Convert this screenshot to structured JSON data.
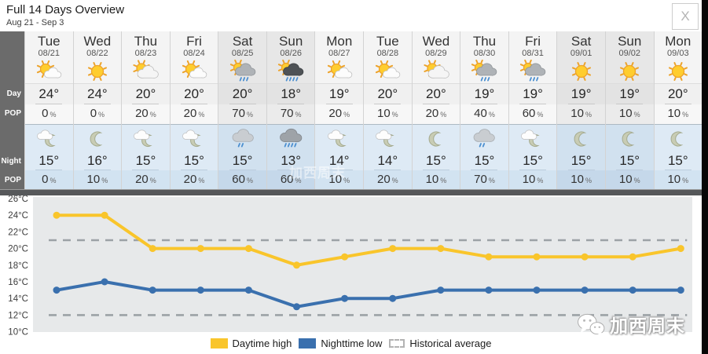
{
  "header": {
    "title": "Full 14 Days Overview",
    "subtitle": "Aug 21 - Sep 3",
    "close_label": "X"
  },
  "row_labels": {
    "day": "Day",
    "day_pop": "POP",
    "night": "Night",
    "night_pop": "POP"
  },
  "units": {
    "degree": "°",
    "percent": "%"
  },
  "days": [
    {
      "name": "Tue",
      "date": "08/21",
      "weekend": false,
      "day": {
        "icon": "sun-cloud",
        "temp": 24,
        "pop": 0
      },
      "night": {
        "icon": "cloud-moon",
        "temp": 15,
        "pop": 0
      }
    },
    {
      "name": "Wed",
      "date": "08/22",
      "weekend": false,
      "day": {
        "icon": "sun",
        "temp": 24,
        "pop": 0
      },
      "night": {
        "icon": "moon",
        "temp": 16,
        "pop": 10
      }
    },
    {
      "name": "Thu",
      "date": "08/23",
      "weekend": false,
      "day": {
        "icon": "cloud-sun",
        "temp": 20,
        "pop": 20
      },
      "night": {
        "icon": "cloud-moon",
        "temp": 15,
        "pop": 20
      }
    },
    {
      "name": "Fri",
      "date": "08/24",
      "weekend": false,
      "day": {
        "icon": "sun-cloud",
        "temp": 20,
        "pop": 20
      },
      "night": {
        "icon": "cloud-moon",
        "temp": 15,
        "pop": 20
      }
    },
    {
      "name": "Sat",
      "date": "08/25",
      "weekend": true,
      "day": {
        "icon": "sun-rain",
        "temp": 20,
        "pop": 70
      },
      "night": {
        "icon": "rain",
        "temp": 15,
        "pop": 60
      }
    },
    {
      "name": "Sun",
      "date": "08/26",
      "weekend": true,
      "day": {
        "icon": "sun-heavy-rain",
        "temp": 18,
        "pop": 70
      },
      "night": {
        "icon": "heavy-rain",
        "temp": 13,
        "pop": 60
      }
    },
    {
      "name": "Mon",
      "date": "08/27",
      "weekend": false,
      "day": {
        "icon": "sun-cloud",
        "temp": 19,
        "pop": 20
      },
      "night": {
        "icon": "cloud-moon",
        "temp": 14,
        "pop": 10
      }
    },
    {
      "name": "Tue",
      "date": "08/28",
      "weekend": false,
      "day": {
        "icon": "sun-cloud",
        "temp": 20,
        "pop": 10
      },
      "night": {
        "icon": "cloud-moon",
        "temp": 14,
        "pop": 20
      }
    },
    {
      "name": "Wed",
      "date": "08/29",
      "weekend": false,
      "day": {
        "icon": "cloud-sun",
        "temp": 20,
        "pop": 20
      },
      "night": {
        "icon": "moon",
        "temp": 15,
        "pop": 10
      }
    },
    {
      "name": "Thu",
      "date": "08/30",
      "weekend": false,
      "day": {
        "icon": "sun-rain",
        "temp": 19,
        "pop": 40
      },
      "night": {
        "icon": "rain",
        "temp": 15,
        "pop": 70
      }
    },
    {
      "name": "Fri",
      "date": "08/31",
      "weekend": false,
      "day": {
        "icon": "sun-rain",
        "temp": 19,
        "pop": 60
      },
      "night": {
        "icon": "cloud-moon",
        "temp": 15,
        "pop": 10
      }
    },
    {
      "name": "Sat",
      "date": "09/01",
      "weekend": true,
      "day": {
        "icon": "sun",
        "temp": 19,
        "pop": 10
      },
      "night": {
        "icon": "moon",
        "temp": 15,
        "pop": 10
      }
    },
    {
      "name": "Sun",
      "date": "09/02",
      "weekend": true,
      "day": {
        "icon": "sun",
        "temp": 19,
        "pop": 10
      },
      "night": {
        "icon": "moon",
        "temp": 15,
        "pop": 10
      }
    },
    {
      "name": "Mon",
      "date": "09/03",
      "weekend": false,
      "day": {
        "icon": "sun",
        "temp": 20,
        "pop": 10
      },
      "night": {
        "icon": "moon",
        "temp": 15,
        "pop": 10
      }
    }
  ],
  "chart_data": {
    "type": "line",
    "categories": [
      "08/21",
      "08/22",
      "08/23",
      "08/24",
      "08/25",
      "08/26",
      "08/27",
      "08/28",
      "08/29",
      "08/30",
      "08/31",
      "09/01",
      "09/02",
      "09/03"
    ],
    "series": [
      {
        "name": "Daytime high",
        "color": "#F9C52B",
        "values": [
          24,
          24,
          20,
          20,
          20,
          18,
          19,
          20,
          20,
          19,
          19,
          19,
          19,
          20
        ]
      },
      {
        "name": "Nighttime low",
        "color": "#3A70AE",
        "values": [
          15,
          16,
          15,
          15,
          15,
          13,
          14,
          14,
          15,
          15,
          15,
          15,
          15,
          15
        ]
      },
      {
        "name": "Historical average",
        "color": "#9CA2A6",
        "style": "dashed",
        "high": 21,
        "low": 12
      }
    ],
    "title": "",
    "xlabel": "",
    "ylabel": "",
    "ylim": [
      10,
      26
    ],
    "ytick_step": 2,
    "ytick_suffix": "°C",
    "grid": false,
    "legend_position": "bottom",
    "plot_bg": "#E7E9EA"
  },
  "watermark": {
    "text": "加西周末"
  }
}
